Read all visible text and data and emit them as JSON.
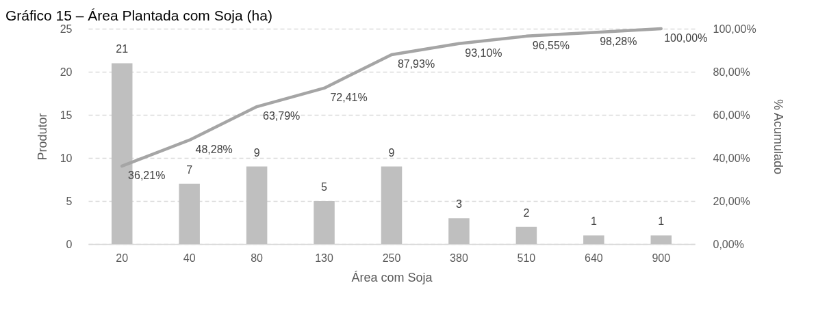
{
  "chart_data": {
    "type": "bar",
    "title": "Gráfico 15 – Área Plantada com Soja (ha)",
    "xlabel": "Área com Soja",
    "ylabel": "Produtor",
    "y2label": "% Acumulado",
    "categories": [
      "20",
      "40",
      "80",
      "130",
      "250",
      "380",
      "510",
      "640",
      "900"
    ],
    "series": [
      {
        "color": "#bfbfbf",
        "values": [
          21,
          7,
          9,
          5,
          9,
          3,
          2,
          1,
          1
        ],
        "value_labels": [
          "21",
          "7",
          "9",
          "5",
          "9",
          "3",
          "2",
          "1",
          "1"
        ]
      },
      {
        "type": "line",
        "axis": "y2",
        "color": "#a5a5a5",
        "values": [
          36.21,
          48.28,
          63.79,
          72.41,
          87.93,
          93.1,
          96.55,
          98.28,
          100
        ],
        "value_labels": [
          "36,21%",
          "48,28%",
          "63,79%",
          "72,41%",
          "87,93%",
          "93,10%",
          "96,55%",
          "98,28%",
          "100,00%"
        ]
      }
    ],
    "ylim": [
      0,
      25
    ],
    "yticks": [
      0,
      5,
      10,
      15,
      20,
      25
    ],
    "y2lim": [
      0,
      100
    ],
    "y2ticks": [
      {
        "value": 0,
        "label": "0,00%"
      },
      {
        "value": 20,
        "label": "20,00%"
      },
      {
        "value": 40,
        "label": "40,00%"
      },
      {
        "value": 60,
        "label": "60,00%"
      },
      {
        "value": 80,
        "label": "80,00%"
      },
      {
        "value": 100,
        "label": "100,00%"
      }
    ],
    "grid": "y"
  }
}
